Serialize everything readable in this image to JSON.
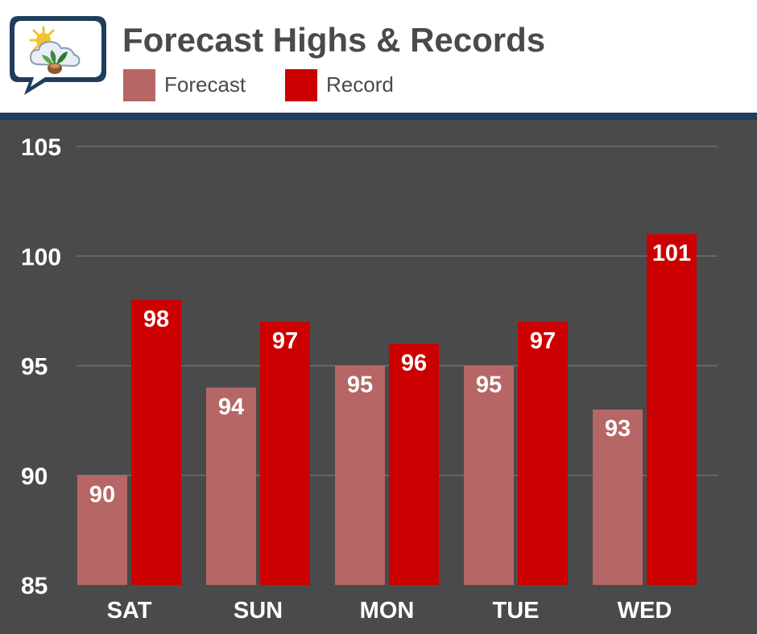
{
  "header": {
    "title": "Forecast Highs & Records"
  },
  "colors": {
    "forecast": "#b76666",
    "record": "#cc0000",
    "background": "#4a4a4a",
    "divider": "#1f3d5c",
    "grid": "#707070",
    "text_light": "#ffffff"
  },
  "logo": {
    "icon_name": "weather-sun-cloud-plant-speech-bubble-icon"
  },
  "chart_data": {
    "type": "bar",
    "title": "Forecast Highs & Records",
    "xlabel": "",
    "ylabel": "",
    "categories": [
      "SAT",
      "SUN",
      "MON",
      "TUE",
      "WED"
    ],
    "series": [
      {
        "name": "Forecast",
        "values": [
          90,
          94,
          95,
          95,
          93
        ],
        "color": "#b76666"
      },
      {
        "name": "Record",
        "values": [
          98,
          97,
          96,
          97,
          101
        ],
        "color": "#cc0000"
      }
    ],
    "ylim": [
      85,
      105
    ],
    "yticks": [
      85,
      90,
      95,
      100,
      105
    ],
    "ytick_labels": [
      "85",
      "90",
      "95",
      "100",
      "105"
    ],
    "grid": true,
    "legend_position": "top-left",
    "data_labels": true
  }
}
